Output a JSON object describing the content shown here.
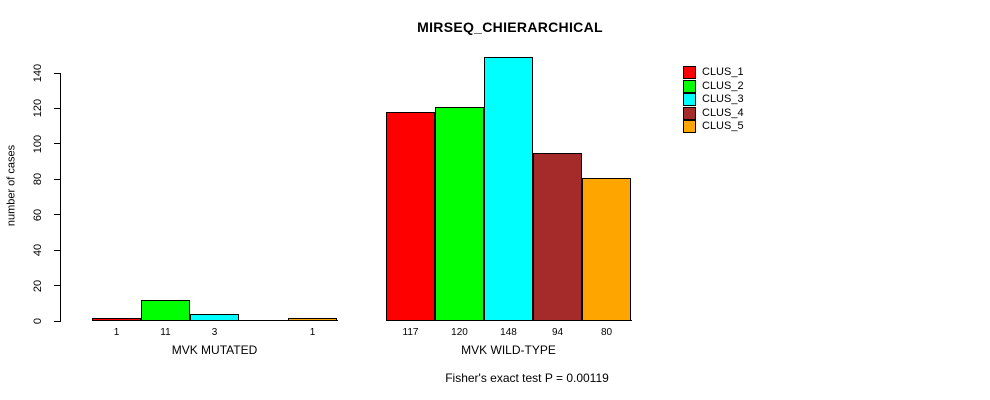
{
  "chart_data": {
    "type": "bar",
    "title": "MIRSEQ_CHIERARCHICAL",
    "ylabel": "number of cases",
    "xlabel": "",
    "sub": "Fisher's exact test P = 0.00119",
    "ylim": [
      0,
      140
    ],
    "yticks": [
      0,
      20,
      40,
      60,
      80,
      100,
      120,
      140
    ],
    "grid": false,
    "legend_position": "top-right",
    "categories": [
      "MVK MUTATED",
      "MVK WILD-TYPE"
    ],
    "series": [
      {
        "name": "CLUS_1",
        "color": "#FF0000",
        "values": [
          1,
          117
        ]
      },
      {
        "name": "CLUS_2",
        "color": "#00FF00",
        "values": [
          11,
          120
        ]
      },
      {
        "name": "CLUS_3",
        "color": "#00FFFF",
        "values": [
          3,
          148
        ]
      },
      {
        "name": "CLUS_4",
        "color": "#A52A2A",
        "values": [
          0,
          94
        ]
      },
      {
        "name": "CLUS_5",
        "color": "#FFA500",
        "values": [
          1,
          80
        ]
      }
    ],
    "bar_value_labels": [
      [
        "1",
        "11",
        "3",
        "",
        "1"
      ],
      [
        "117",
        "120",
        "148",
        "94",
        "80"
      ]
    ]
  }
}
